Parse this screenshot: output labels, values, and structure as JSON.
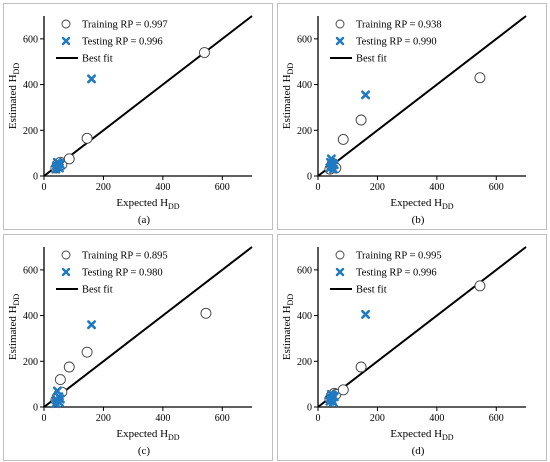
{
  "chart_data": [
    {
      "type": "scatter",
      "caption": "(a)",
      "xlabel": "Expected H",
      "xlabel_sub": "DD",
      "ylabel": "Estimated H",
      "ylabel_sub": "DD",
      "xlim": [
        0,
        700
      ],
      "ylim": [
        0,
        700
      ],
      "xticks": [
        "0",
        "200",
        "400",
        "600"
      ],
      "yticks": [
        "0",
        "200",
        "400",
        "600"
      ],
      "grid": false,
      "legend_position": "top-left",
      "series": [
        {
          "name": "Training RP = 0.997",
          "marker": "open-circle",
          "x": [
            40,
            45,
            50,
            55,
            60,
            85,
            145,
            540
          ],
          "y": [
            35,
            50,
            45,
            60,
            50,
            75,
            165,
            540
          ]
        },
        {
          "name": "Testing RP = 0.996",
          "marker": "x",
          "x": [
            40,
            42,
            45,
            48,
            50,
            52,
            55,
            160
          ],
          "y": [
            30,
            45,
            60,
            40,
            55,
            35,
            50,
            425
          ]
        },
        {
          "name": "Best fit",
          "marker": "line",
          "x": [
            0,
            700
          ],
          "y": [
            0,
            700
          ]
        }
      ]
    },
    {
      "type": "scatter",
      "caption": "(b)",
      "xlabel": "Expected H",
      "xlabel_sub": "DD",
      "ylabel": "Estimated H",
      "ylabel_sub": "DD",
      "xlim": [
        0,
        700
      ],
      "ylim": [
        0,
        700
      ],
      "xticks": [
        "0",
        "200",
        "400",
        "600"
      ],
      "yticks": [
        "0",
        "200",
        "400",
        "600"
      ],
      "grid": false,
      "legend_position": "top-left",
      "series": [
        {
          "name": "Training RP = 0.938",
          "marker": "open-circle",
          "x": [
            40,
            45,
            50,
            55,
            60,
            85,
            145,
            545
          ],
          "y": [
            30,
            45,
            55,
            40,
            35,
            160,
            245,
            430
          ]
        },
        {
          "name": "Testing RP = 0.990",
          "marker": "x",
          "x": [
            40,
            42,
            45,
            48,
            50,
            52,
            55,
            160
          ],
          "y": [
            35,
            60,
            75,
            45,
            55,
            30,
            50,
            355
          ]
        },
        {
          "name": "Best fit",
          "marker": "line",
          "x": [
            0,
            700
          ],
          "y": [
            0,
            700
          ]
        }
      ]
    },
    {
      "type": "scatter",
      "caption": "(c)",
      "xlabel": "Expected H",
      "xlabel_sub": "DD",
      "ylabel": "Estimated H",
      "ylabel_sub": "DD",
      "xlim": [
        0,
        700
      ],
      "ylim": [
        0,
        700
      ],
      "xticks": [
        "0",
        "200",
        "400",
        "600"
      ],
      "yticks": [
        "0",
        "200",
        "400",
        "600"
      ],
      "grid": false,
      "legend_position": "top-left",
      "series": [
        {
          "name": "Training RP = 0.895",
          "marker": "open-circle",
          "x": [
            40,
            45,
            50,
            55,
            60,
            85,
            145,
            545
          ],
          "y": [
            30,
            45,
            55,
            120,
            65,
            175,
            240,
            410
          ]
        },
        {
          "name": "Testing RP = 0.980",
          "marker": "x",
          "x": [
            40,
            42,
            45,
            48,
            50,
            52,
            55,
            160
          ],
          "y": [
            15,
            30,
            70,
            25,
            45,
            20,
            35,
            360
          ]
        },
        {
          "name": "Best fit",
          "marker": "line",
          "x": [
            0,
            700
          ],
          "y": [
            0,
            700
          ]
        }
      ]
    },
    {
      "type": "scatter",
      "caption": "(d)",
      "xlabel": "Expected H",
      "xlabel_sub": "DD",
      "ylabel": "Estimated H",
      "ylabel_sub": "DD",
      "xlim": [
        0,
        700
      ],
      "ylim": [
        0,
        700
      ],
      "xticks": [
        "0",
        "200",
        "400",
        "600"
      ],
      "yticks": [
        "0",
        "200",
        "400",
        "600"
      ],
      "grid": false,
      "legend_position": "top-left",
      "series": [
        {
          "name": "Training RP = 0.995",
          "marker": "open-circle",
          "x": [
            40,
            45,
            50,
            55,
            60,
            85,
            145,
            545
          ],
          "y": [
            35,
            50,
            45,
            60,
            55,
            75,
            175,
            530
          ]
        },
        {
          "name": "Testing RP = 0.996",
          "marker": "x",
          "x": [
            40,
            42,
            45,
            48,
            50,
            52,
            55,
            160
          ],
          "y": [
            25,
            40,
            55,
            30,
            50,
            20,
            45,
            405
          ]
        },
        {
          "name": "Best fit",
          "marker": "line",
          "x": [
            0,
            700
          ],
          "y": [
            0,
            700
          ]
        }
      ]
    }
  ],
  "colors": {
    "training_stroke": "#404040",
    "testing": "#1f7ac2",
    "best_fit": "#000000",
    "axis": "#000000",
    "frame": "#bfbfbf"
  }
}
